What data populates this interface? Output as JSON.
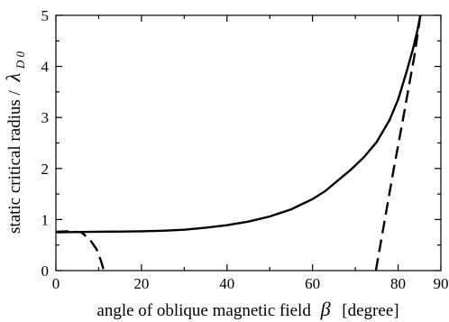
{
  "chart_data": {
    "type": "line",
    "title": "",
    "xlabel": {
      "text": "angle of oblique magnetic field",
      "symbol": "β",
      "unit": "[degree]"
    },
    "ylabel": {
      "text": "static critical radius /",
      "symbol": "λ",
      "subscript": "D 0"
    },
    "xlim": [
      0,
      90
    ],
    "ylim": [
      0,
      5
    ],
    "xticks": [
      0,
      20,
      40,
      60,
      80,
      90
    ],
    "xtick_labels": [
      "0",
      "20",
      "40",
      "60",
      "80",
      "90"
    ],
    "yticks": [
      0,
      1,
      2,
      3,
      4,
      5
    ],
    "ytick_labels": [
      "0",
      "1",
      "2",
      "3",
      "4",
      "5"
    ],
    "grid": false,
    "legend": "none",
    "series": [
      {
        "style": "solid",
        "color": "#000000",
        "x": [
          0,
          10,
          20,
          25,
          30,
          35,
          40,
          45,
          50,
          55,
          60,
          63,
          66,
          69,
          72,
          75,
          78,
          80,
          82,
          83.5,
          84.5,
          85.2
        ],
        "y": [
          0.75,
          0.76,
          0.77,
          0.78,
          0.8,
          0.84,
          0.89,
          0.96,
          1.06,
          1.2,
          1.4,
          1.56,
          1.77,
          1.98,
          2.22,
          2.52,
          2.95,
          3.35,
          3.9,
          4.35,
          4.7,
          5.0
        ]
      },
      {
        "style": "dashed",
        "color": "#000000",
        "x": [
          0,
          3,
          6,
          8,
          9.5,
          10.5,
          11.2
        ],
        "y": [
          0.76,
          0.77,
          0.75,
          0.6,
          0.42,
          0.2,
          0.0
        ]
      },
      {
        "style": "dashed",
        "color": "#000000",
        "x": [
          74.8,
          77,
          79,
          81,
          82.5,
          83.8,
          84.6,
          85.2
        ],
        "y": [
          0.0,
          1.05,
          2.0,
          2.9,
          3.6,
          4.2,
          4.65,
          5.0
        ]
      }
    ]
  }
}
